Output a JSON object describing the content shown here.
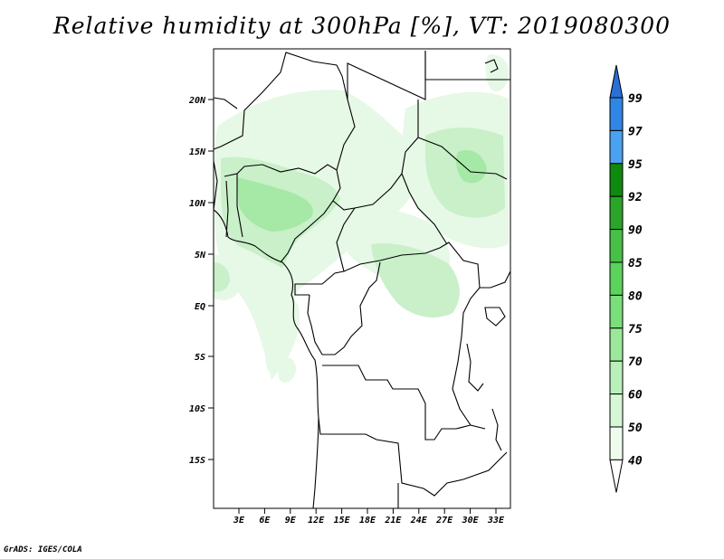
{
  "title": "Relative humidity at 300hPa [%], VT: 2019080300",
  "credit": "GrADS: IGES/COLA",
  "map": {
    "lat_labels": [
      "20N",
      "15N",
      "10N",
      "5N",
      "EQ",
      "5S",
      "10S",
      "15S"
    ],
    "lon_labels": [
      "3E",
      "6E",
      "9E",
      "12E",
      "15E",
      "18E",
      "21E",
      "24E",
      "27E",
      "30E",
      "33E"
    ]
  },
  "colorbar": {
    "levels": [
      "99",
      "97",
      "95",
      "92",
      "90",
      "85",
      "80",
      "75",
      "70",
      "60",
      "50",
      "40"
    ],
    "colors": [
      "#2a6fd6",
      "#2f86e6",
      "#4aa3f0",
      "#0e8a0e",
      "#2aa52a",
      "#46c146",
      "#5cd35c",
      "#7ade7a",
      "#9be89b",
      "#b9efb9",
      "#d6f6d6",
      "#eefcee"
    ]
  },
  "humidity_colors": {
    "light": "#e6f8e6",
    "pale": "#c9f0c9",
    "mid": "#a6e8a6",
    "strong": "#7ddc7d"
  }
}
